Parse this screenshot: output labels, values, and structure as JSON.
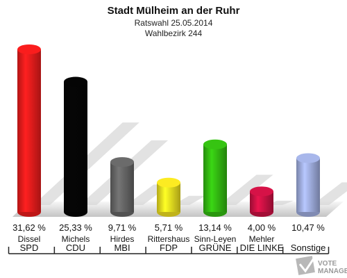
{
  "chart_data": {
    "type": "bar",
    "title": "Stadt Mülheim an der Ruhr",
    "subtitle": "Ratswahl 25.05.2014",
    "subtitle2": "Wahlbezirk 244",
    "categories": [
      "SPD",
      "CDU",
      "MBI",
      "FDP",
      "GRÜNE",
      "DIE LINKE",
      "Sonstige"
    ],
    "candidates": [
      "Dissel",
      "Michels",
      "Hirdes",
      "Rittershaus",
      "Sinn-Leyen",
      "Mehler",
      ""
    ],
    "values": [
      31.62,
      25.33,
      9.71,
      5.71,
      13.14,
      4.0,
      10.47
    ],
    "value_labels": [
      "31,62 %",
      "25,33 %",
      "9,71 %",
      "5,71 %",
      "13,14 %",
      "4,00 %",
      "10,47 %"
    ],
    "colors": [
      "#ee1c1c",
      "#050505",
      "#666666",
      "#f0e020",
      "#33bb11",
      "#cc1144",
      "#a0aee0"
    ]
  },
  "watermark": {
    "line1": "VOTE",
    "line2": "MANAGER"
  }
}
